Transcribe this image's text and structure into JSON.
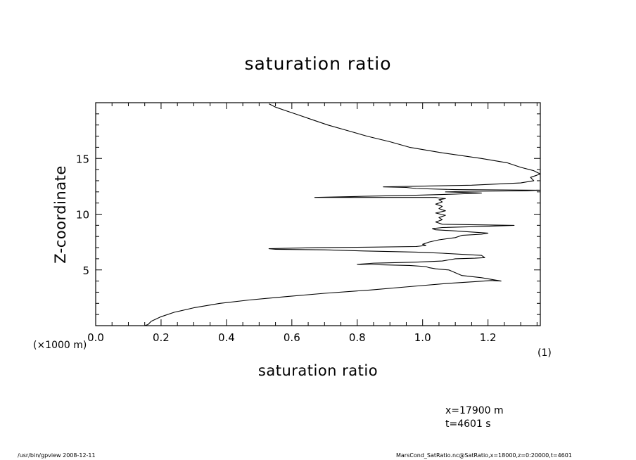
{
  "chart_data": {
    "type": "line",
    "title": "saturation ratio",
    "xlabel": "saturation ratio",
    "ylabel": "Z-coordinate",
    "x_unit": "(1)",
    "y_unit": "(×1000 m)",
    "xlim": [
      0.0,
      1.36
    ],
    "ylim": [
      0,
      20
    ],
    "xticks": [
      "0.0",
      "0.2",
      "0.4",
      "0.6",
      "0.8",
      "1.0",
      "1.2"
    ],
    "yticks": [
      "5",
      "10",
      "15"
    ],
    "grid": false,
    "series": [
      {
        "x": [
          0.15,
          0.16,
          0.17,
          0.2,
          0.24,
          0.3,
          0.38,
          0.47,
          0.58,
          0.7,
          0.84,
          0.96,
          1.08,
          1.16,
          1.21,
          1.24,
          1.18,
          1.12,
          1.08,
          1.04,
          1.02,
          1.01,
          0.96,
          0.88,
          0.8,
          0.85,
          0.98,
          1.06,
          1.1,
          1.16,
          1.19,
          1.18,
          1.12,
          1.06,
          1.02,
          0.98,
          0.82,
          0.7,
          0.55,
          0.53,
          0.68,
          0.85,
          0.98,
          1.01,
          1.0,
          1.02,
          1.05,
          1.1,
          1.12,
          1.18,
          1.2,
          1.1,
          1.04,
          1.03,
          1.06,
          1.18,
          1.28,
          1.06,
          1.04,
          1.06,
          1.05,
          1.07,
          1.04,
          1.07,
          1.05,
          1.06,
          1.04,
          1.06,
          1.05,
          1.07,
          1.05,
          1.04,
          0.88,
          0.67,
          0.82,
          0.98,
          1.1,
          1.18,
          1.07,
          1.15,
          1.32,
          1.36,
          1.1,
          0.98,
          0.95,
          0.88,
          1.15,
          1.3,
          1.34,
          1.33,
          1.36,
          1.34,
          1.3,
          1.26,
          1.18,
          1.06,
          0.96,
          0.9,
          0.83,
          0.77,
          0.71,
          0.66,
          0.62,
          0.58,
          0.55,
          0.53
        ],
        "y": [
          0.0,
          0.1,
          0.4,
          0.8,
          1.2,
          1.6,
          2.0,
          2.3,
          2.6,
          2.9,
          3.2,
          3.5,
          3.8,
          3.95,
          4.05,
          4.0,
          4.3,
          4.5,
          5.0,
          5.1,
          5.2,
          5.3,
          5.4,
          5.45,
          5.5,
          5.6,
          5.7,
          5.8,
          6.0,
          6.05,
          6.1,
          6.3,
          6.4,
          6.5,
          6.55,
          6.6,
          6.7,
          6.8,
          6.85,
          6.9,
          7.0,
          7.05,
          7.1,
          7.2,
          7.3,
          7.5,
          7.7,
          7.9,
          8.1,
          8.2,
          8.3,
          8.5,
          8.6,
          8.7,
          8.8,
          8.9,
          9.0,
          9.1,
          9.3,
          9.5,
          9.7,
          9.9,
          10.1,
          10.3,
          10.5,
          10.7,
          10.9,
          11.1,
          11.3,
          11.4,
          11.45,
          11.5,
          11.5,
          11.5,
          11.6,
          11.7,
          11.8,
          11.9,
          12.0,
          12.05,
          12.1,
          12.15,
          12.2,
          12.3,
          12.4,
          12.45,
          12.6,
          12.8,
          13.0,
          13.3,
          13.6,
          13.9,
          14.2,
          14.6,
          15.0,
          15.5,
          16.0,
          16.5,
          17.0,
          17.5,
          18.0,
          18.5,
          18.9,
          19.3,
          19.6,
          19.9
        ]
      }
    ]
  },
  "labels": {
    "title": "saturation ratio",
    "xlabel": "saturation ratio",
    "ylabel": "Z-coordinate",
    "x_unit": "(1)",
    "y_unit": "(×1000 m)"
  },
  "info": {
    "x_position": "x=17900  m",
    "time": "t=4601  s"
  },
  "footer": {
    "left": "/usr/bin/gpview   2008-12-11",
    "right": "MarsCond_SatRatio.nc@SatRatio,x=18000,z=0:20000,t=4601"
  }
}
